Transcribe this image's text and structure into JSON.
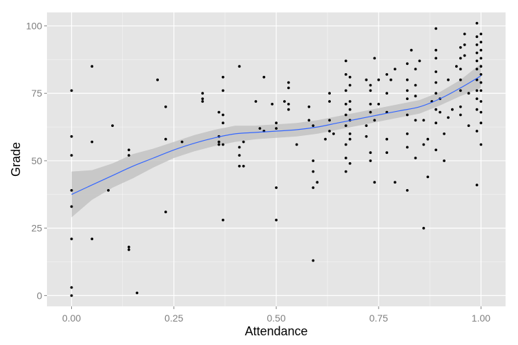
{
  "chart_data": {
    "type": "scatter",
    "xlabel": "Attendance",
    "ylabel": "Grade",
    "xlim": [
      -0.06,
      1.06
    ],
    "ylim": [
      -4,
      105
    ],
    "x_ticks": [
      0,
      0.25,
      0.5,
      0.75,
      1.0
    ],
    "x_tick_labels": [
      "0.00",
      "0.25",
      "0.50",
      "0.75",
      "1.00"
    ],
    "y_ticks": [
      0,
      25,
      50,
      75,
      100
    ],
    "y_tick_labels": [
      "0",
      "25",
      "50",
      "75",
      "100"
    ],
    "grid": true,
    "colors": {
      "panel": "#e5e5e5",
      "grid": "#ffffff",
      "points": "#000000",
      "smooth_line": "#3366ff",
      "band": "#bdbdbd"
    },
    "points": [
      [
        0.0,
        76
      ],
      [
        0.0,
        59
      ],
      [
        0.0,
        52
      ],
      [
        0.0,
        39
      ],
      [
        0.0,
        33
      ],
      [
        0.0,
        21
      ],
      [
        0.0,
        3
      ],
      [
        0.0,
        0
      ],
      [
        0.05,
        85
      ],
      [
        0.05,
        57
      ],
      [
        0.05,
        21
      ],
      [
        0.09,
        39
      ],
      [
        0.1,
        63
      ],
      [
        0.14,
        54
      ],
      [
        0.14,
        52
      ],
      [
        0.14,
        18
      ],
      [
        0.14,
        17
      ],
      [
        0.16,
        1
      ],
      [
        0.21,
        80
      ],
      [
        0.23,
        70
      ],
      [
        0.23,
        58
      ],
      [
        0.23,
        31
      ],
      [
        0.27,
        57
      ],
      [
        0.32,
        75
      ],
      [
        0.32,
        73
      ],
      [
        0.32,
        72
      ],
      [
        0.36,
        68
      ],
      [
        0.36,
        59
      ],
      [
        0.36,
        57
      ],
      [
        0.36,
        56
      ],
      [
        0.37,
        81
      ],
      [
        0.37,
        76
      ],
      [
        0.37,
        67
      ],
      [
        0.37,
        64
      ],
      [
        0.37,
        56
      ],
      [
        0.37,
        28
      ],
      [
        0.41,
        85
      ],
      [
        0.41,
        55
      ],
      [
        0.41,
        52
      ],
      [
        0.41,
        48
      ],
      [
        0.42,
        57
      ],
      [
        0.42,
        48
      ],
      [
        0.45,
        72
      ],
      [
        0.46,
        62
      ],
      [
        0.47,
        81
      ],
      [
        0.47,
        61
      ],
      [
        0.49,
        71
      ],
      [
        0.5,
        64
      ],
      [
        0.5,
        62
      ],
      [
        0.5,
        40
      ],
      [
        0.5,
        28
      ],
      [
        0.52,
        72
      ],
      [
        0.53,
        79
      ],
      [
        0.53,
        77
      ],
      [
        0.53,
        71
      ],
      [
        0.53,
        69
      ],
      [
        0.55,
        56
      ],
      [
        0.58,
        70
      ],
      [
        0.58,
        65
      ],
      [
        0.59,
        63
      ],
      [
        0.59,
        50
      ],
      [
        0.59,
        46
      ],
      [
        0.59,
        40
      ],
      [
        0.59,
        13
      ],
      [
        0.6,
        42
      ],
      [
        0.62,
        58
      ],
      [
        0.63,
        75
      ],
      [
        0.63,
        72
      ],
      [
        0.63,
        65
      ],
      [
        0.63,
        61
      ],
      [
        0.64,
        60
      ],
      [
        0.67,
        87
      ],
      [
        0.67,
        82
      ],
      [
        0.67,
        76
      ],
      [
        0.67,
        71
      ],
      [
        0.67,
        67
      ],
      [
        0.67,
        63
      ],
      [
        0.67,
        56
      ],
      [
        0.67,
        51
      ],
      [
        0.67,
        46
      ],
      [
        0.68,
        81
      ],
      [
        0.68,
        78
      ],
      [
        0.68,
        72
      ],
      [
        0.68,
        69
      ],
      [
        0.68,
        65
      ],
      [
        0.68,
        60
      ],
      [
        0.68,
        58
      ],
      [
        0.68,
        49
      ],
      [
        0.72,
        80
      ],
      [
        0.72,
        63
      ],
      [
        0.72,
        59
      ],
      [
        0.73,
        78
      ],
      [
        0.73,
        76
      ],
      [
        0.73,
        71
      ],
      [
        0.73,
        68
      ],
      [
        0.73,
        53
      ],
      [
        0.73,
        50
      ],
      [
        0.74,
        88
      ],
      [
        0.74,
        65
      ],
      [
        0.74,
        42
      ],
      [
        0.75,
        80
      ],
      [
        0.75,
        71
      ],
      [
        0.77,
        82
      ],
      [
        0.77,
        75
      ],
      [
        0.77,
        68
      ],
      [
        0.77,
        58
      ],
      [
        0.77,
        53
      ],
      [
        0.78,
        80
      ],
      [
        0.79,
        84
      ],
      [
        0.79,
        42
      ],
      [
        0.82,
        86
      ],
      [
        0.82,
        80
      ],
      [
        0.82,
        76
      ],
      [
        0.82,
        73
      ],
      [
        0.82,
        67
      ],
      [
        0.82,
        60
      ],
      [
        0.82,
        55
      ],
      [
        0.82,
        39
      ],
      [
        0.83,
        91
      ],
      [
        0.84,
        84
      ],
      [
        0.84,
        78
      ],
      [
        0.84,
        74
      ],
      [
        0.84,
        65
      ],
      [
        0.84,
        51
      ],
      [
        0.85,
        87
      ],
      [
        0.86,
        65
      ],
      [
        0.86,
        56
      ],
      [
        0.86,
        25
      ],
      [
        0.87,
        58
      ],
      [
        0.87,
        44
      ],
      [
        0.88,
        72
      ],
      [
        0.89,
        99
      ],
      [
        0.89,
        91
      ],
      [
        0.89,
        88
      ],
      [
        0.89,
        83
      ],
      [
        0.89,
        79
      ],
      [
        0.89,
        75
      ],
      [
        0.89,
        69
      ],
      [
        0.89,
        64
      ],
      [
        0.89,
        54
      ],
      [
        0.9,
        73
      ],
      [
        0.9,
        68
      ],
      [
        0.91,
        60
      ],
      [
        0.91,
        50
      ],
      [
        0.92,
        80
      ],
      [
        0.92,
        66
      ],
      [
        0.93,
        69
      ],
      [
        0.94,
        85
      ],
      [
        0.95,
        92
      ],
      [
        0.95,
        88
      ],
      [
        0.95,
        84
      ],
      [
        0.95,
        80
      ],
      [
        0.95,
        76
      ],
      [
        0.95,
        70
      ],
      [
        0.95,
        67
      ],
      [
        0.96,
        97
      ],
      [
        0.96,
        93
      ],
      [
        0.96,
        89
      ],
      [
        0.97,
        75
      ],
      [
        0.97,
        63
      ],
      [
        0.99,
        101
      ],
      [
        0.99,
        96
      ],
      [
        0.99,
        93
      ],
      [
        0.99,
        90
      ],
      [
        0.99,
        87
      ],
      [
        0.99,
        84
      ],
      [
        0.99,
        80
      ],
      [
        0.99,
        76
      ],
      [
        0.99,
        73
      ],
      [
        0.99,
        69
      ],
      [
        0.99,
        61
      ],
      [
        0.99,
        41
      ],
      [
        1.0,
        97
      ],
      [
        1.0,
        94
      ],
      [
        1.0,
        91
      ],
      [
        1.0,
        88
      ],
      [
        1.0,
        85
      ],
      [
        1.0,
        82
      ],
      [
        1.0,
        79
      ],
      [
        1.0,
        76
      ],
      [
        1.0,
        72
      ],
      [
        1.0,
        68
      ],
      [
        1.0,
        64
      ],
      [
        1.0,
        56
      ]
    ],
    "smooth": {
      "x": [
        0.0,
        0.05,
        0.1,
        0.15,
        0.2,
        0.25,
        0.3,
        0.35,
        0.4,
        0.45,
        0.5,
        0.55,
        0.6,
        0.65,
        0.7,
        0.75,
        0.8,
        0.85,
        0.9,
        0.95,
        1.0
      ],
      "y": [
        37.5,
        41.0,
        44.5,
        48.0,
        51.0,
        54.0,
        56.5,
        58.5,
        60.0,
        60.5,
        61.0,
        61.5,
        62.5,
        64.0,
        65.5,
        67.0,
        68.5,
        70.0,
        73.0,
        77.0,
        81.5
      ],
      "lower": [
        29.0,
        35.5,
        40.0,
        43.5,
        47.5,
        51.0,
        53.5,
        55.5,
        57.0,
        58.0,
        58.5,
        59.0,
        60.0,
        61.5,
        63.0,
        64.5,
        66.0,
        67.5,
        70.5,
        74.0,
        77.0
      ],
      "upper": [
        46.0,
        46.5,
        49.0,
        52.5,
        54.5,
        57.0,
        59.5,
        61.5,
        63.0,
        63.0,
        63.5,
        64.0,
        65.0,
        66.5,
        68.0,
        69.5,
        71.0,
        72.5,
        75.5,
        80.0,
        86.0
      ]
    }
  }
}
